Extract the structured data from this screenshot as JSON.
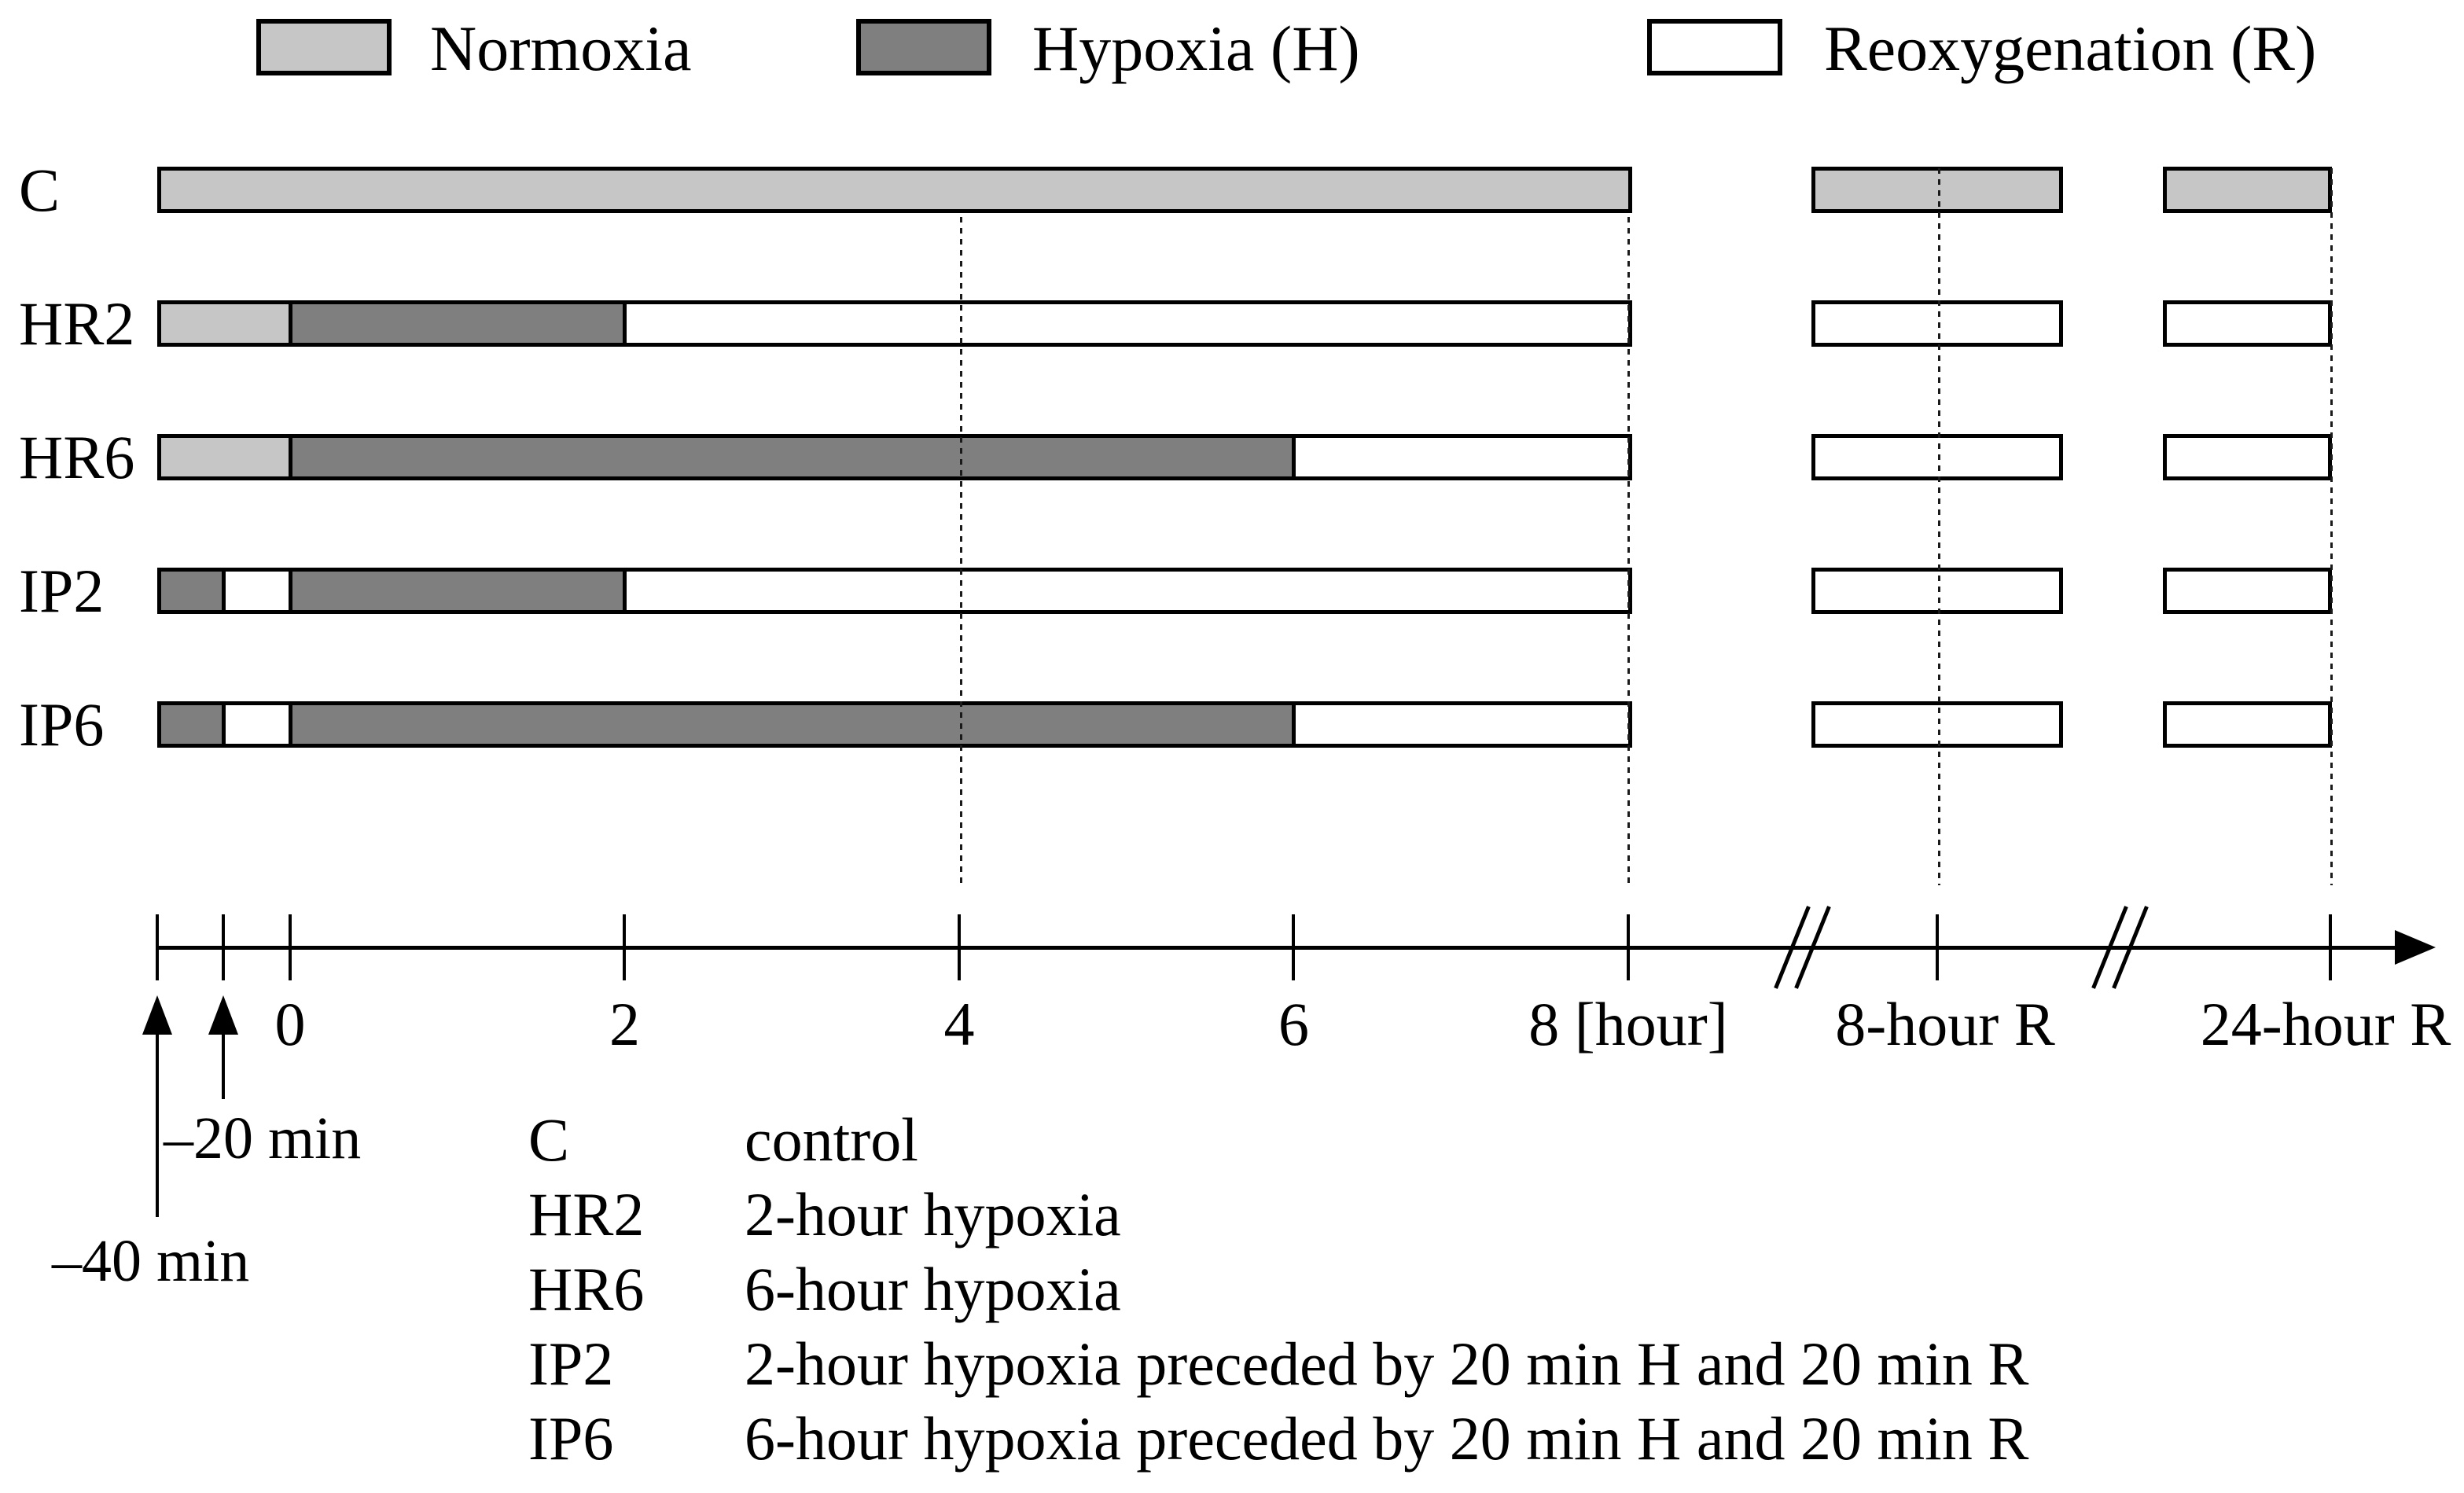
{
  "figure": {
    "legend": {
      "items": [
        {
          "key": "normoxia",
          "label": "Normoxia",
          "color": "#c6c6c6"
        },
        {
          "key": "hypoxia",
          "label": "Hypoxia (H)",
          "color": "#7f7f7f"
        },
        {
          "key": "reoxygenation",
          "label": "Reoxygenation (R)",
          "color": "#ffffff"
        }
      ]
    },
    "timeline": {
      "rows": [
        {
          "label": "C",
          "segments": [
            {
              "from_min": -40,
              "to_min": 480,
              "state": "normoxia"
            }
          ],
          "followup_boxes": [
            {
              "time_label": "8-hour R",
              "state": "normoxia"
            },
            {
              "time_label": "24-hour R",
              "state": "normoxia"
            }
          ]
        },
        {
          "label": "HR2",
          "segments": [
            {
              "from_min": -40,
              "to_min": 0,
              "state": "normoxia"
            },
            {
              "from_min": 0,
              "to_min": 120,
              "state": "hypoxia"
            },
            {
              "from_min": 120,
              "to_min": 480,
              "state": "reoxygenation"
            }
          ],
          "followup_boxes": [
            {
              "time_label": "8-hour R",
              "state": "reoxygenation"
            },
            {
              "time_label": "24-hour R",
              "state": "reoxygenation"
            }
          ]
        },
        {
          "label": "HR6",
          "segments": [
            {
              "from_min": -40,
              "to_min": 0,
              "state": "normoxia"
            },
            {
              "from_min": 0,
              "to_min": 360,
              "state": "hypoxia"
            },
            {
              "from_min": 360,
              "to_min": 480,
              "state": "reoxygenation"
            }
          ],
          "followup_boxes": [
            {
              "time_label": "8-hour R",
              "state": "reoxygenation"
            },
            {
              "time_label": "24-hour R",
              "state": "reoxygenation"
            }
          ]
        },
        {
          "label": "IP2",
          "segments": [
            {
              "from_min": -40,
              "to_min": -20,
              "state": "hypoxia"
            },
            {
              "from_min": -20,
              "to_min": 0,
              "state": "reoxygenation"
            },
            {
              "from_min": 0,
              "to_min": 120,
              "state": "hypoxia"
            },
            {
              "from_min": 120,
              "to_min": 480,
              "state": "reoxygenation"
            }
          ],
          "followup_boxes": [
            {
              "time_label": "8-hour R",
              "state": "reoxygenation"
            },
            {
              "time_label": "24-hour R",
              "state": "reoxygenation"
            }
          ]
        },
        {
          "label": "IP6",
          "segments": [
            {
              "from_min": -40,
              "to_min": -20,
              "state": "hypoxia"
            },
            {
              "from_min": -20,
              "to_min": 0,
              "state": "reoxygenation"
            },
            {
              "from_min": 0,
              "to_min": 360,
              "state": "hypoxia"
            },
            {
              "from_min": 360,
              "to_min": 480,
              "state": "reoxygenation"
            }
          ],
          "followup_boxes": [
            {
              "time_label": "8-hour R",
              "state": "reoxygenation"
            },
            {
              "time_label": "24-hour R",
              "state": "reoxygenation"
            }
          ]
        }
      ]
    },
    "axis": {
      "tick_labels": [
        {
          "t_min": 0,
          "label": "0"
        },
        {
          "t_min": 120,
          "label": "2"
        },
        {
          "t_min": 240,
          "label": "4"
        },
        {
          "t_min": 360,
          "label": "6"
        },
        {
          "t_min": 480,
          "label": "8 [hour]"
        },
        {
          "ref": "followup-8h",
          "label": "8-hour R"
        },
        {
          "ref": "followup-24h",
          "label": "24-hour R"
        }
      ],
      "pre_time_annotations": [
        {
          "t_min": -40,
          "label": "–40 min"
        },
        {
          "t_min": -20,
          "label": "–20 min"
        }
      ]
    },
    "definitions": [
      {
        "abbr": "C",
        "description": "control"
      },
      {
        "abbr": "HR2",
        "description": "2-hour hypoxia"
      },
      {
        "abbr": "HR6",
        "description": "6-hour hypoxia"
      },
      {
        "abbr": "IP2",
        "description": "2-hour hypoxia preceded by 20 min H and 20 min R"
      },
      {
        "abbr": "IP6",
        "description": "6-hour hypoxia preceded by 20 min H and 20 min R"
      }
    ]
  }
}
